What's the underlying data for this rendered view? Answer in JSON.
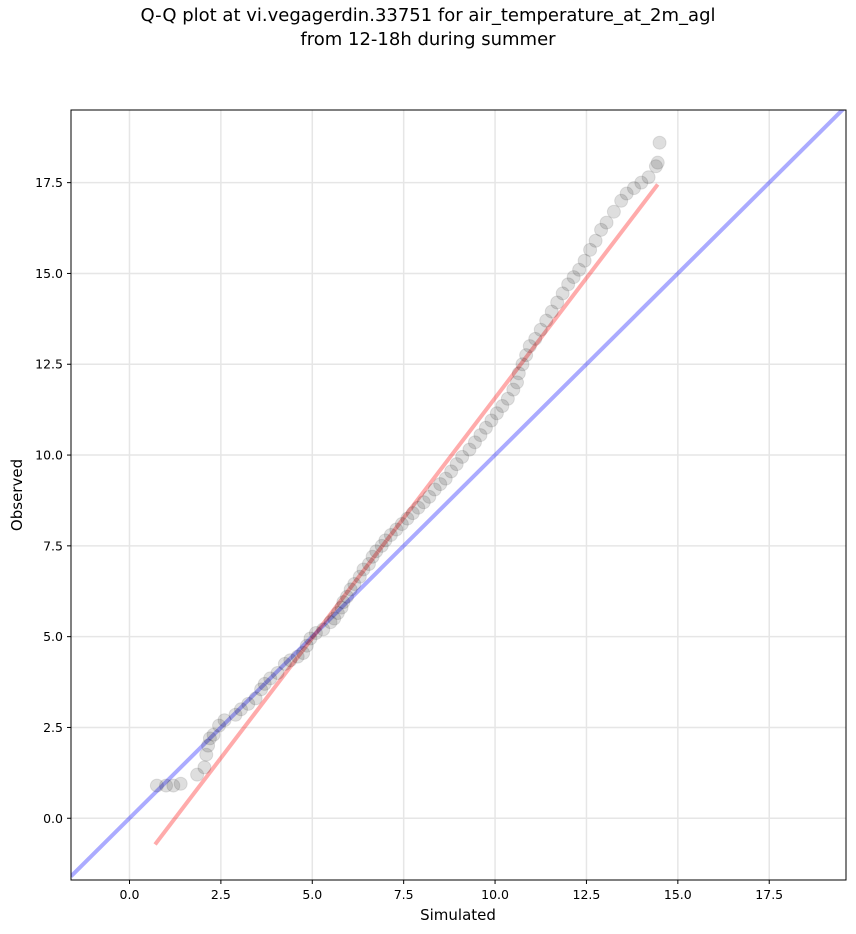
{
  "title_line1": "Q-Q plot at vi.vegagerdin.33751 for air_temperature_at_2m_agl",
  "title_line2": "from 12-18h during summer",
  "chart_data": {
    "type": "scatter",
    "title": "Q-Q plot at vi.vegagerdin.33751 for air_temperature_at_2m_agl from 12-18h during summer",
    "xlabel": "Simulated",
    "ylabel": "Observed",
    "xlim": [
      -1.6,
      19.6
    ],
    "ylim": [
      -1.7,
      19.5
    ],
    "xticks": [
      "0.0",
      "2.5",
      "5.0",
      "7.5",
      "10.0",
      "12.5",
      "15.0",
      "17.5"
    ],
    "yticks": [
      "0.0",
      "2.5",
      "5.0",
      "7.5",
      "10.0",
      "12.5",
      "15.0",
      "17.5"
    ],
    "grid": true,
    "colors": {
      "points": "#000000",
      "reference_line": "#0000ff",
      "fit_line": "#ff0000"
    },
    "reference_line": {
      "name": "1:1",
      "x": [
        -1.6,
        19.6
      ],
      "y": [
        -1.6,
        19.6
      ]
    },
    "fit_line": {
      "x": [
        0.7,
        14.45
      ],
      "y": [
        -0.72,
        17.45
      ]
    },
    "points": [
      [
        0.75,
        0.9
      ],
      [
        1.0,
        0.9
      ],
      [
        1.2,
        0.9
      ],
      [
        1.4,
        0.95
      ],
      [
        1.85,
        1.2
      ],
      [
        2.05,
        1.4
      ],
      [
        2.1,
        1.75
      ],
      [
        2.15,
        2.0
      ],
      [
        2.2,
        2.2
      ],
      [
        2.3,
        2.3
      ],
      [
        2.45,
        2.55
      ],
      [
        2.6,
        2.7
      ],
      [
        2.9,
        2.85
      ],
      [
        3.05,
        3.0
      ],
      [
        3.25,
        3.15
      ],
      [
        3.45,
        3.3
      ],
      [
        3.6,
        3.55
      ],
      [
        3.7,
        3.7
      ],
      [
        3.85,
        3.85
      ],
      [
        4.05,
        4.0
      ],
      [
        4.25,
        4.25
      ],
      [
        4.4,
        4.35
      ],
      [
        4.6,
        4.45
      ],
      [
        4.75,
        4.55
      ],
      [
        4.85,
        4.75
      ],
      [
        4.95,
        4.95
      ],
      [
        5.1,
        5.1
      ],
      [
        5.3,
        5.2
      ],
      [
        5.5,
        5.4
      ],
      [
        5.6,
        5.5
      ],
      [
        5.7,
        5.65
      ],
      [
        5.8,
        5.8
      ],
      [
        5.85,
        5.95
      ],
      [
        5.95,
        6.1
      ],
      [
        6.05,
        6.3
      ],
      [
        6.15,
        6.45
      ],
      [
        6.3,
        6.65
      ],
      [
        6.4,
        6.85
      ],
      [
        6.55,
        7.0
      ],
      [
        6.65,
        7.2
      ],
      [
        6.75,
        7.35
      ],
      [
        6.9,
        7.5
      ],
      [
        7.0,
        7.65
      ],
      [
        7.15,
        7.8
      ],
      [
        7.3,
        7.95
      ],
      [
        7.45,
        8.1
      ],
      [
        7.6,
        8.25
      ],
      [
        7.75,
        8.4
      ],
      [
        7.9,
        8.55
      ],
      [
        8.05,
        8.7
      ],
      [
        8.2,
        8.85
      ],
      [
        8.35,
        9.05
      ],
      [
        8.5,
        9.2
      ],
      [
        8.65,
        9.35
      ],
      [
        8.8,
        9.55
      ],
      [
        8.95,
        9.75
      ],
      [
        9.1,
        9.95
      ],
      [
        9.3,
        10.15
      ],
      [
        9.45,
        10.35
      ],
      [
        9.6,
        10.55
      ],
      [
        9.75,
        10.75
      ],
      [
        9.9,
        10.95
      ],
      [
        10.05,
        11.15
      ],
      [
        10.2,
        11.35
      ],
      [
        10.35,
        11.55
      ],
      [
        10.5,
        11.8
      ],
      [
        10.6,
        12.0
      ],
      [
        10.65,
        12.25
      ],
      [
        10.75,
        12.5
      ],
      [
        10.85,
        12.75
      ],
      [
        10.95,
        13.0
      ],
      [
        11.1,
        13.2
      ],
      [
        11.25,
        13.45
      ],
      [
        11.4,
        13.7
      ],
      [
        11.55,
        13.95
      ],
      [
        11.7,
        14.2
      ],
      [
        11.85,
        14.45
      ],
      [
        12.0,
        14.7
      ],
      [
        12.15,
        14.9
      ],
      [
        12.3,
        15.1
      ],
      [
        12.45,
        15.35
      ],
      [
        12.6,
        15.65
      ],
      [
        12.75,
        15.9
      ],
      [
        12.9,
        16.2
      ],
      [
        13.05,
        16.4
      ],
      [
        13.25,
        16.7
      ],
      [
        13.45,
        17.0
      ],
      [
        13.6,
        17.2
      ],
      [
        13.8,
        17.35
      ],
      [
        14.0,
        17.5
      ],
      [
        14.2,
        17.65
      ],
      [
        14.4,
        17.95
      ],
      [
        14.45,
        18.05
      ],
      [
        14.5,
        18.6
      ]
    ]
  }
}
